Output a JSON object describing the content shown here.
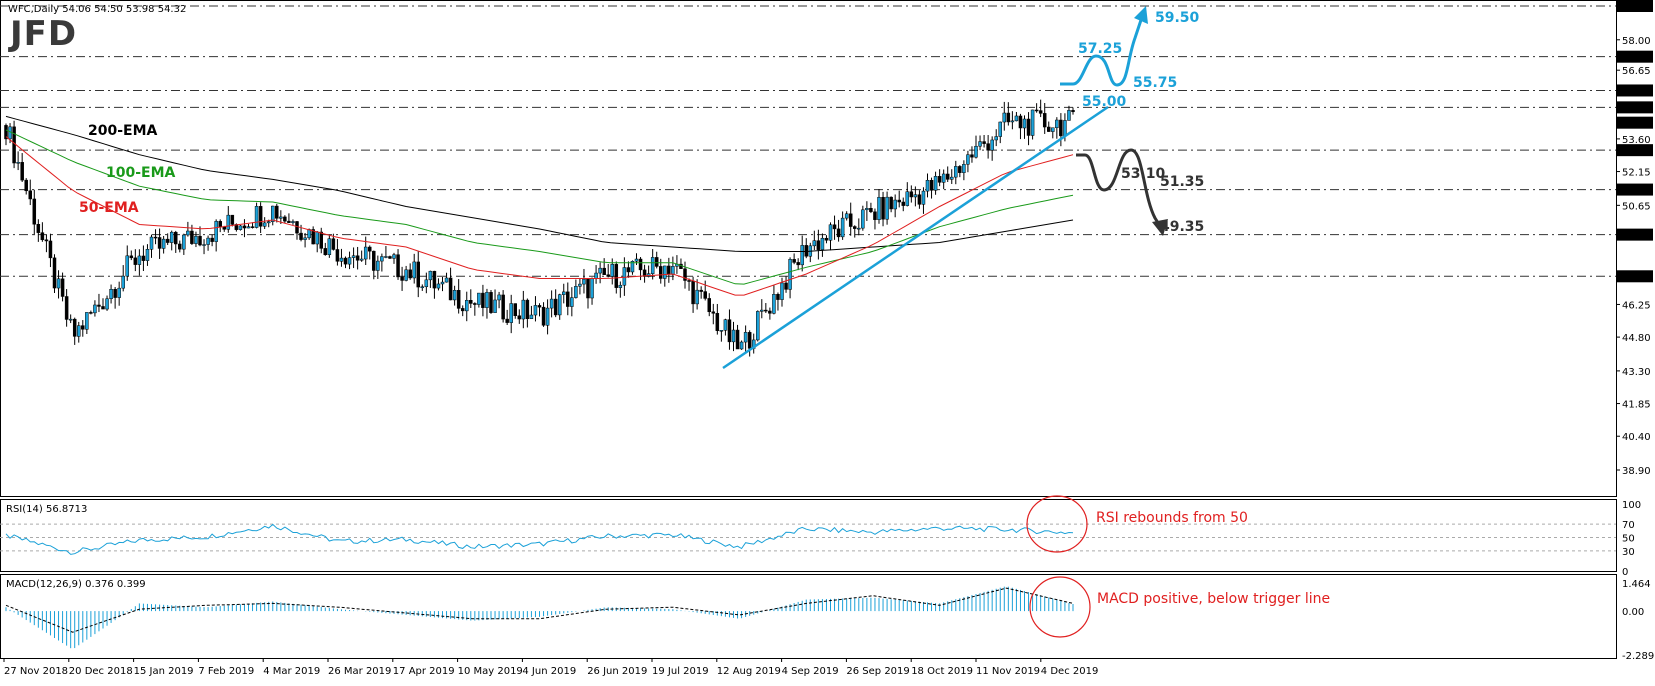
{
  "header": {
    "title": "WFC,Daily  54.06 54.50 53.98 54.32",
    "logo_text": "JFD"
  },
  "price_axis": {
    "ticks": [
      "59.50",
      "58.00",
      "57.25",
      "56.65",
      "55.75",
      "55.00",
      "54.32",
      "53.60",
      "53.10",
      "52.15",
      "51.35",
      "50.65",
      "49.35",
      "47.50",
      "46.25",
      "44.80",
      "43.30",
      "41.85",
      "40.40",
      "38.90"
    ],
    "highlighted": [
      "59.50",
      "57.25",
      "55.75",
      "55.00",
      "54.32",
      "53.10",
      "51.35",
      "49.35",
      "47.50"
    ]
  },
  "levels": [
    {
      "value": 59.5,
      "label": "59.50",
      "color": "#1ba1d8"
    },
    {
      "value": 57.25,
      "label": "57.25",
      "color": "#1ba1d8"
    },
    {
      "value": 55.75,
      "label": "55.75",
      "color": "#1ba1d8"
    },
    {
      "value": 55.0,
      "label": "55.00",
      "color": "#1ba1d8"
    },
    {
      "value": 53.1,
      "label": "53.10",
      "color": "#333333"
    },
    {
      "value": 51.35,
      "label": "51.35",
      "color": "#333333"
    },
    {
      "value": 49.35,
      "label": "49.35",
      "color": "#333333"
    },
    {
      "value": 47.5,
      "label": "",
      "color": "#333333"
    }
  ],
  "ema_labels": {
    "ema200": "200-EMA",
    "ema100": "100-EMA",
    "ema50": "50-EMA"
  },
  "colors": {
    "candle": "#1ba1d8",
    "ema200": "#000000",
    "ema100": "#1a9a1a",
    "ema50": "#e02020",
    "trendline": "#1ba1d8",
    "annotation": "#e02020",
    "bull_path": "#1ba1d8",
    "bear_path": "#333333"
  },
  "rsi_panel": {
    "title": "RSI(14) 56.8713",
    "ticks": [
      "100",
      "70",
      "50",
      "30",
      "0"
    ],
    "annotation": "RSI rebounds from 50"
  },
  "macd_panel": {
    "title": "MACD(12,26,9) 0.376 0.399",
    "ticks": [
      "1.464",
      "0.00",
      "-2.289"
    ],
    "annotation": "MACD positive, below trigger line"
  },
  "date_axis": {
    "labels": [
      "27 Nov 2018",
      "20 Dec 2018",
      "15 Jan 2019",
      "7 Feb 2019",
      "4 Mar 2019",
      "26 Mar 2019",
      "17 Apr 2019",
      "10 May 2019",
      "4 Jun 2019",
      "26 Jun 2019",
      "19 Jul 2019",
      "12 Aug 2019",
      "4 Sep 2019",
      "26 Sep 2019",
      "18 Oct 2019",
      "11 Nov 2019",
      "4 Dec 2019"
    ]
  },
  "chart_data": {
    "type": "line",
    "symbol": "WFC",
    "timeframe": "Daily",
    "ylim": [
      38.9,
      59.5
    ],
    "x": [
      "27 Nov 2018",
      "20 Dec 2018",
      "15 Jan 2019",
      "7 Feb 2019",
      "4 Mar 2019",
      "26 Mar 2019",
      "17 Apr 2019",
      "10 May 2019",
      "4 Jun 2019",
      "26 Jun 2019",
      "19 Jul 2019",
      "12 Aug 2019",
      "4 Sep 2019",
      "26 Sep 2019",
      "18 Oct 2019",
      "11 Nov 2019",
      "4 Dec 2019"
    ],
    "series": [
      {
        "name": "WFC",
        "values": [
          54.2,
          44.8,
          48.5,
          49.4,
          50.5,
          48.6,
          47.8,
          46.3,
          45.8,
          47.5,
          48.0,
          44.2,
          48.8,
          50.3,
          51.6,
          54.3,
          54.3
        ]
      },
      {
        "name": "200-EMA",
        "values": [
          54.6,
          53.8,
          52.9,
          52.2,
          51.8,
          51.3,
          50.6,
          50.1,
          49.6,
          49.0,
          48.8,
          48.6,
          48.6,
          48.8,
          49.0,
          49.5,
          50.0
        ]
      },
      {
        "name": "100-EMA",
        "values": [
          54.0,
          52.6,
          51.5,
          50.9,
          50.8,
          50.2,
          49.8,
          49.0,
          48.6,
          48.1,
          48.1,
          47.1,
          47.9,
          48.6,
          49.7,
          50.5,
          51.1
        ]
      },
      {
        "name": "50-EMA",
        "values": [
          53.7,
          51.3,
          49.8,
          49.6,
          50.0,
          49.2,
          48.8,
          47.8,
          47.4,
          47.4,
          47.6,
          46.6,
          47.6,
          48.9,
          50.6,
          52.1,
          52.9
        ]
      }
    ],
    "rsi": {
      "ylim": [
        0,
        100
      ],
      "levels": [
        70,
        50,
        30
      ],
      "values": [
        53,
        28,
        46,
        51,
        68,
        44,
        47,
        36,
        40,
        52,
        54,
        36,
        63,
        58,
        64,
        62,
        57
      ]
    },
    "macd": {
      "ylim": [
        -2.289,
        1.464
      ],
      "histogram": [
        0.2,
        -2.0,
        0.4,
        0.2,
        0.5,
        0.1,
        -0.2,
        -0.5,
        -0.3,
        0.2,
        0.1,
        -0.4,
        0.6,
        0.7,
        0.4,
        1.3,
        0.37
      ],
      "signal": [
        0.3,
        -1.1,
        0.1,
        0.3,
        0.4,
        0.2,
        -0.1,
        -0.4,
        -0.4,
        0.1,
        0.2,
        -0.2,
        0.4,
        0.8,
        0.3,
        1.2,
        0.4
      ]
    },
    "annotations": {
      "bull_targets": [
        "57.25",
        "55.75",
        "59.50"
      ],
      "bear_targets": [
        "53.10",
        "51.35",
        "49.35"
      ]
    }
  }
}
